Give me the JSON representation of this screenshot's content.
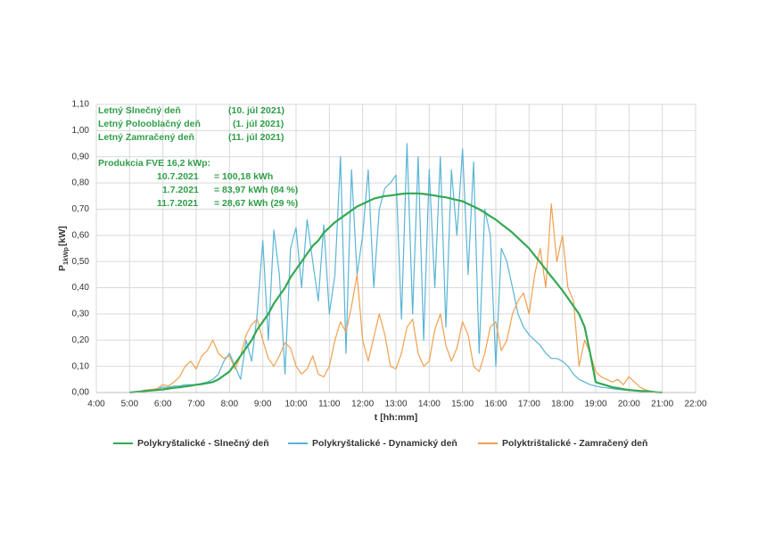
{
  "chart_data": {
    "type": "line",
    "x": [
      "5:00",
      "5:10",
      "5:20",
      "5:30",
      "5:40",
      "5:50",
      "6:00",
      "6:10",
      "6:20",
      "6:30",
      "6:40",
      "6:50",
      "7:00",
      "7:10",
      "7:20",
      "7:30",
      "7:40",
      "7:50",
      "8:00",
      "8:10",
      "8:20",
      "8:30",
      "8:40",
      "8:50",
      "9:00",
      "9:10",
      "9:20",
      "9:30",
      "9:40",
      "9:50",
      "10:00",
      "10:10",
      "10:20",
      "10:30",
      "10:40",
      "10:50",
      "11:00",
      "11:10",
      "11:20",
      "11:30",
      "11:40",
      "11:50",
      "12:00",
      "12:10",
      "12:20",
      "12:30",
      "12:40",
      "12:50",
      "13:00",
      "13:10",
      "13:20",
      "13:30",
      "13:40",
      "13:50",
      "14:00",
      "14:10",
      "14:20",
      "14:30",
      "14:40",
      "14:50",
      "15:00",
      "15:10",
      "15:20",
      "15:30",
      "15:40",
      "15:50",
      "16:00",
      "16:10",
      "16:20",
      "16:30",
      "16:40",
      "16:50",
      "17:00",
      "17:10",
      "17:20",
      "17:30",
      "17:40",
      "17:50",
      "18:00",
      "18:10",
      "18:20",
      "18:30",
      "18:40",
      "18:50",
      "19:00",
      "19:10",
      "19:20",
      "19:30",
      "19:40",
      "19:50",
      "20:00",
      "20:10",
      "20:20",
      "20:30",
      "20:40",
      "20:50",
      "21:00"
    ],
    "series": [
      {
        "name": "Polykryštalické - Slnečný deň",
        "color": "#33a852",
        "values": [
          0,
          0.002,
          0.004,
          0.006,
          0.008,
          0.01,
          0.012,
          0.015,
          0.018,
          0.02,
          0.023,
          0.026,
          0.03,
          0.032,
          0.036,
          0.04,
          0.05,
          0.065,
          0.08,
          0.11,
          0.14,
          0.17,
          0.2,
          0.24,
          0.27,
          0.3,
          0.34,
          0.37,
          0.4,
          0.44,
          0.47,
          0.5,
          0.53,
          0.56,
          0.58,
          0.61,
          0.63,
          0.65,
          0.665,
          0.68,
          0.695,
          0.71,
          0.72,
          0.73,
          0.74,
          0.745,
          0.75,
          0.752,
          0.755,
          0.758,
          0.76,
          0.76,
          0.76,
          0.758,
          0.755,
          0.752,
          0.748,
          0.745,
          0.74,
          0.735,
          0.73,
          0.72,
          0.71,
          0.7,
          0.687,
          0.673,
          0.66,
          0.643,
          0.627,
          0.61,
          0.59,
          0.57,
          0.55,
          0.523,
          0.497,
          0.47,
          0.443,
          0.417,
          0.39,
          0.36,
          0.33,
          0.3,
          0.25,
          0.15,
          0.04,
          0.033,
          0.027,
          0.02,
          0.017,
          0.013,
          0.01,
          0.008,
          0.006,
          0.005,
          0.003,
          0.001,
          0
        ]
      },
      {
        "name": "Polykryštalické - Dynamický deň",
        "color": "#5ab4d6",
        "values": [
          0,
          0,
          0.005,
          0.01,
          0.01,
          0.015,
          0.02,
          0.02,
          0.025,
          0.025,
          0.03,
          0.03,
          0.03,
          0.035,
          0.04,
          0.05,
          0.07,
          0.12,
          0.15,
          0.1,
          0.05,
          0.2,
          0.12,
          0.3,
          0.58,
          0.2,
          0.62,
          0.45,
          0.07,
          0.55,
          0.63,
          0.4,
          0.66,
          0.5,
          0.35,
          0.64,
          0.3,
          0.45,
          0.9,
          0.15,
          0.85,
          0.45,
          0.6,
          0.85,
          0.4,
          0.7,
          0.78,
          0.8,
          0.83,
          0.28,
          0.95,
          0.3,
          0.9,
          0.2,
          0.85,
          0.4,
          0.9,
          0.25,
          0.85,
          0.6,
          0.93,
          0.45,
          0.88,
          0.15,
          0.7,
          0.6,
          0.1,
          0.55,
          0.5,
          0.4,
          0.3,
          0.25,
          0.22,
          0.2,
          0.18,
          0.15,
          0.13,
          0.13,
          0.12,
          0.1,
          0.07,
          0.05,
          0.04,
          0.03,
          0.025,
          0.02,
          0.018,
          0.015,
          0.012,
          0.01,
          0.008,
          0.006,
          0.004,
          0.002,
          0.001,
          0,
          0
        ]
      },
      {
        "name": "Polyktrištalické - Zamračený deň",
        "color": "#f0a050",
        "values": [
          0,
          0,
          0.005,
          0.01,
          0.012,
          0.015,
          0.03,
          0.025,
          0.04,
          0.06,
          0.1,
          0.12,
          0.09,
          0.14,
          0.16,
          0.2,
          0.15,
          0.13,
          0.14,
          0.09,
          0.14,
          0.22,
          0.26,
          0.28,
          0.2,
          0.13,
          0.1,
          0.14,
          0.19,
          0.17,
          0.1,
          0.07,
          0.09,
          0.14,
          0.07,
          0.06,
          0.1,
          0.2,
          0.27,
          0.23,
          0.33,
          0.45,
          0.2,
          0.12,
          0.21,
          0.3,
          0.22,
          0.1,
          0.09,
          0.15,
          0.25,
          0.28,
          0.15,
          0.1,
          0.12,
          0.24,
          0.3,
          0.18,
          0.12,
          0.17,
          0.27,
          0.22,
          0.1,
          0.08,
          0.15,
          0.25,
          0.27,
          0.16,
          0.2,
          0.3,
          0.35,
          0.38,
          0.3,
          0.45,
          0.55,
          0.4,
          0.72,
          0.5,
          0.6,
          0.4,
          0.35,
          0.1,
          0.2,
          0.15,
          0.08,
          0.06,
          0.05,
          0.04,
          0.05,
          0.03,
          0.06,
          0.04,
          0.02,
          0.01,
          0.005,
          0.002,
          0
        ]
      }
    ],
    "xlim": [
      "4:00",
      "22:00"
    ],
    "xticks": [
      "4:00",
      "5:00",
      "6:00",
      "7:00",
      "8:00",
      "9:00",
      "10:00",
      "11:00",
      "12:00",
      "13:00",
      "14:00",
      "15:00",
      "16:00",
      "17:00",
      "18:00",
      "19:00",
      "20:00",
      "21:00",
      "22:00"
    ],
    "ylim": [
      0,
      1.1
    ],
    "yticks": [
      {
        "value": 0,
        "label": "0,00"
      },
      {
        "value": 0.1,
        "label": "0,10"
      },
      {
        "value": 0.2,
        "label": "0,20"
      },
      {
        "value": 0.3,
        "label": "0,30"
      },
      {
        "value": 0.4,
        "label": "0,40"
      },
      {
        "value": 0.5,
        "label": "0,50"
      },
      {
        "value": 0.6,
        "label": "0,60"
      },
      {
        "value": 0.7,
        "label": "0,70"
      },
      {
        "value": 0.8,
        "label": "0,80"
      },
      {
        "value": 0.9,
        "label": "0,90"
      },
      {
        "value": 1,
        "label": "1,00"
      },
      {
        "value": 1.1,
        "label": "1,10"
      }
    ],
    "grid": true,
    "xlabel": "t [hh:mm]",
    "ylabel": {
      "main": "P",
      "sub": "1kWp",
      "unit": "[kW]"
    },
    "annotations": [
      {
        "label": "Letný Slnečný deň",
        "value": "(10. júl 2021)"
      },
      {
        "label": "Letný Polooblačný deň",
        "value": "(1. júl 2021)"
      },
      {
        "label": "Letný Zamračený deň",
        "value": "(11. júl 2021)"
      },
      {
        "label": "Produkcia FVE 16,2 kWp:"
      },
      {
        "label": "10.7.2021",
        "value": "= 100,18 kWh"
      },
      {
        "label": "1.7.2021",
        "value": "= 83,97 kWh  (84 %)"
      },
      {
        "label": "11.7.2021",
        "value": "= 28,67 kWh  (29 %)"
      }
    ]
  }
}
